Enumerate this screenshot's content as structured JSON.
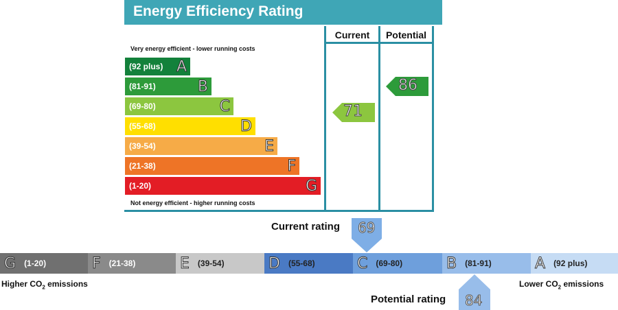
{
  "chart_data": {
    "type": "bar",
    "title": "Energy Efficiency Rating",
    "columns": [
      "Current",
      "Potential"
    ],
    "top_note": "Very energy efficient - lower running costs",
    "bottom_note": "Not energy efficient - higher running costs",
    "bands": [
      {
        "letter": "A",
        "range": "(92 plus)",
        "color": "#13813b"
      },
      {
        "letter": "B",
        "range": "(81-91)",
        "color": "#2d9b3a"
      },
      {
        "letter": "C",
        "range": "(69-80)",
        "color": "#8cc63f"
      },
      {
        "letter": "D",
        "range": "(55-68)",
        "color": "#ffdf00"
      },
      {
        "letter": "E",
        "range": "(39-54)",
        "color": "#f6ab47"
      },
      {
        "letter": "F",
        "range": "(21-38)",
        "color": "#ee7426"
      },
      {
        "letter": "G",
        "range": "(1-20)",
        "color": "#e31d25"
      }
    ],
    "current": {
      "value": "71",
      "band": "C",
      "color": "#8cc63f"
    },
    "potential": {
      "value": "86",
      "band": "B",
      "color": "#2d9b3a"
    }
  },
  "scale": {
    "segments": [
      {
        "letter": "G",
        "range": "(1-20)",
        "color": "#707070",
        "text_color": "#ffffff"
      },
      {
        "letter": "F",
        "range": "(21-38)",
        "color": "#8a8a8a",
        "text_color": "#ffffff"
      },
      {
        "letter": "E",
        "range": "(39-54)",
        "color": "#c8c8c8",
        "text_color": "#222222"
      },
      {
        "letter": "D",
        "range": "(55-68)",
        "color": "#4a7ac4",
        "text_color": "#222222"
      },
      {
        "letter": "C",
        "range": "(69-80)",
        "color": "#6e9fdc",
        "text_color": "#222222"
      },
      {
        "letter": "B",
        "range": "(81-91)",
        "color": "#98bdea",
        "text_color": "#222222"
      },
      {
        "letter": "A",
        "range": "(92 plus)",
        "color": "#c6dcf4",
        "text_color": "#222222"
      }
    ],
    "left_label_main": "Higher CO",
    "left_label_sub": "2",
    "left_label_tail": " emissions",
    "right_label_main": "Lower CO",
    "right_label_sub": "2",
    "right_label_tail": " emissions",
    "current_label": "Current rating",
    "current_value": "69",
    "potential_label": "Potential rating",
    "potential_value": "84"
  }
}
